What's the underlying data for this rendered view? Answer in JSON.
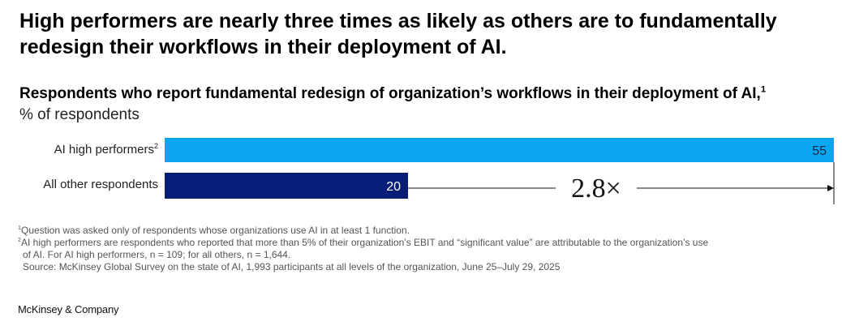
{
  "headline": "High performers are nearly three times as likely as others are to fundamentally redesign their workflows in their deployment of AI.",
  "subtitle": {
    "text": "Respondents who report fundamental redesign of organization’s workflows in their deployment of AI,",
    "sup": "1"
  },
  "unit": "% of respondents",
  "chart_data": {
    "type": "bar",
    "orientation": "horizontal",
    "categories": [
      "AI high performers",
      "All other respondents"
    ],
    "category_superscripts": [
      "2",
      ""
    ],
    "values": [
      55,
      20
    ],
    "value_labels": [
      "55",
      "20"
    ],
    "colors": [
      "#0aa6f0",
      "#071d78"
    ],
    "value_label_colors": [
      "#1a2a4a",
      "#ffffff"
    ],
    "xlim": [
      0,
      55
    ],
    "annotation": "2.8×",
    "grid": false,
    "legend": "none"
  },
  "footnotes": [
    {
      "sup": "1",
      "text": "Question was asked only of respondents whose organizations use AI in at least 1 function."
    },
    {
      "sup": "2",
      "text": "AI high performers are respondents who reported that more than 5% of their organization’s EBIT and “significant value” are attributable to the organization’s use"
    },
    {
      "sup": "",
      "text": "of AI. For AI high performers, n = 109; for all others, n = 1,644."
    },
    {
      "sup": "",
      "text": "Source: McKinsey Global Survey on the state of AI, 1,993 participants at all levels of the organization, June 25–July 29, 2025"
    }
  ],
  "brand": "McKinsey & Company"
}
